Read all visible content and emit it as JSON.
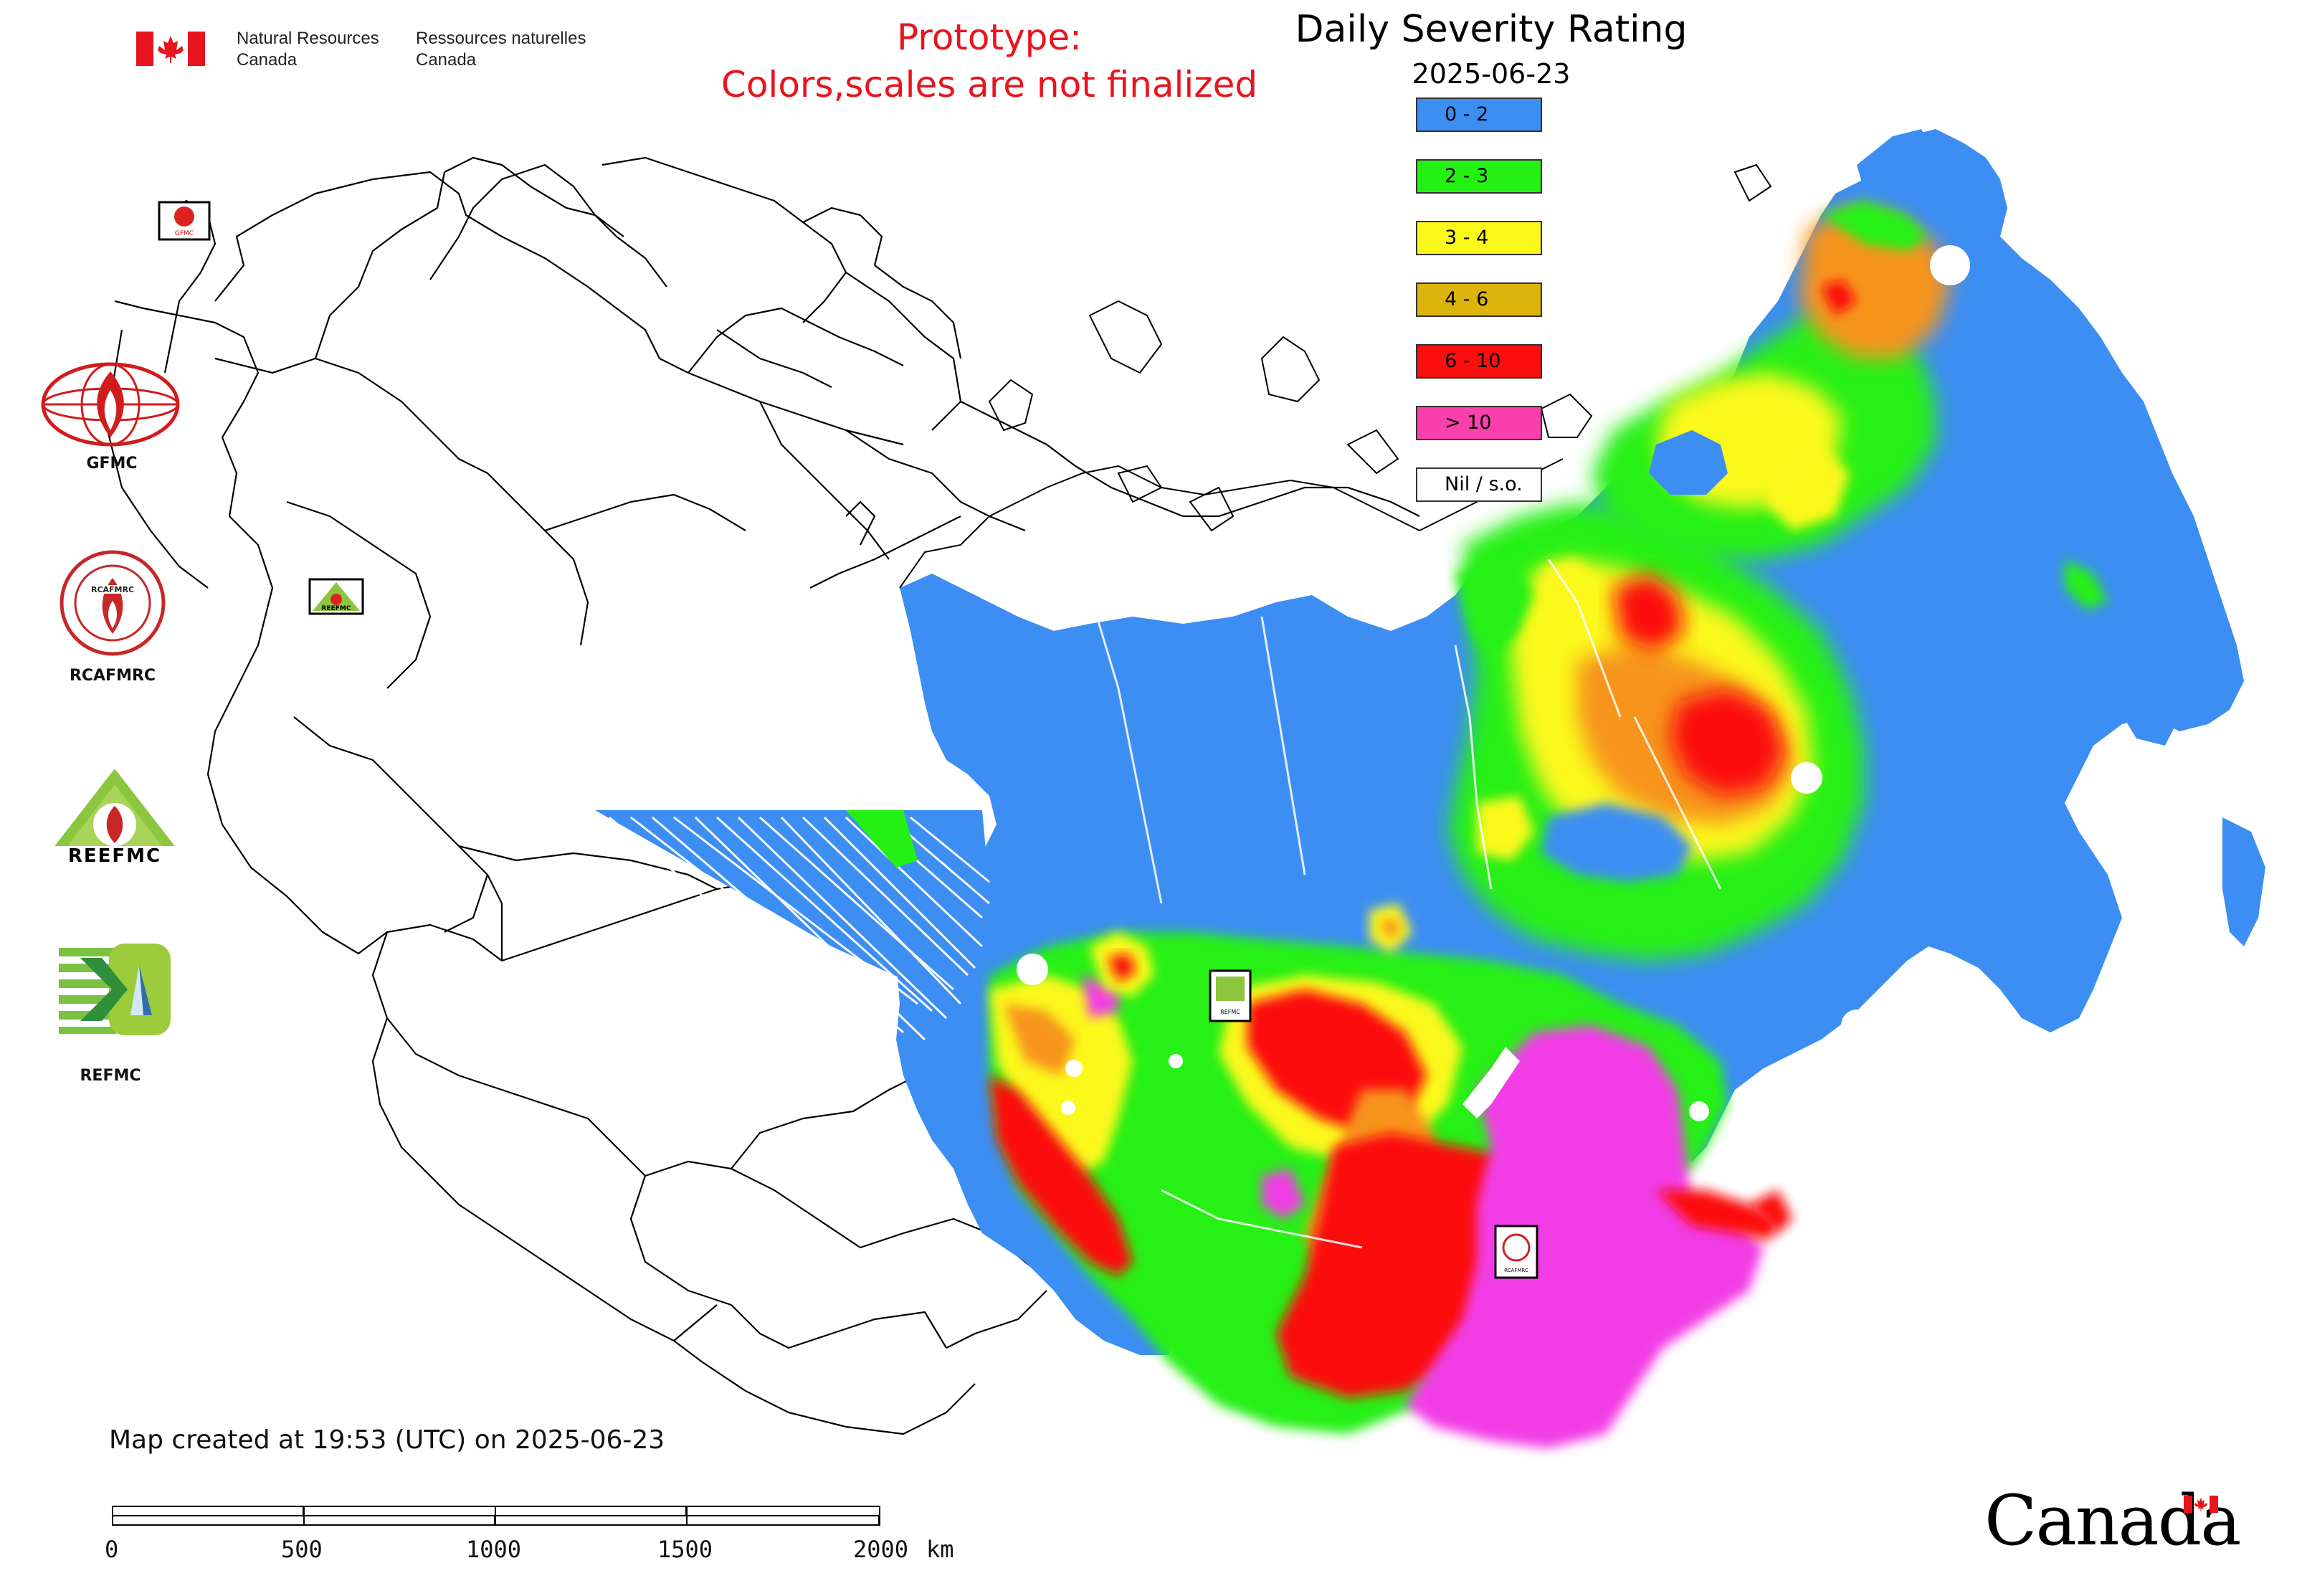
{
  "header": {
    "org_en_line1": "Natural Resources",
    "org_en_line2": "Canada",
    "org_fr_line1": "Ressources naturelles",
    "org_fr_line2": "Canada"
  },
  "prototype_notice": {
    "line1": "Prototype:",
    "line2": "Colors,scales are not finalized"
  },
  "legend": {
    "title": "Daily Severity Rating",
    "date": "2025-06-23",
    "classes": [
      {
        "label": "0 - 2",
        "color": "#3d8ef2"
      },
      {
        "label": "2 - 3",
        "color": "#25f014"
      },
      {
        "label": "3 - 4",
        "color": "#fbf81c"
      },
      {
        "label": "4 - 6",
        "color": "#dcb40c"
      },
      {
        "label": "6 - 10",
        "color": "#fb0e0e"
      },
      {
        "label": "> 10",
        "color": "#f940ad"
      },
      {
        "label": "Nil / s.o.",
        "color": "#ffffff"
      }
    ]
  },
  "side_logos": [
    {
      "label": "GFMC",
      "icon": "gfmc-logo"
    },
    {
      "label": "RCAFMRC",
      "icon": "rcafmrc-logo"
    },
    {
      "label": "",
      "icon": "reefmc-logo"
    },
    {
      "label": "REFMC",
      "icon": "refmc-logo"
    }
  ],
  "map_markers": [
    {
      "label": "GFMC",
      "icon": "gfmc-marker"
    },
    {
      "label": "REEFMC",
      "icon": "reefmc-marker"
    },
    {
      "label": "REFMC",
      "icon": "refmc-marker"
    },
    {
      "label": "RCAFMRC",
      "icon": "rcafmrc-marker"
    }
  ],
  "colors": {
    "blue": "#3d8ef2",
    "green": "#25f014",
    "yellow": "#fbf81c",
    "orange": "#f7941d",
    "gold": "#dcb40c",
    "red": "#fb0e0e",
    "magenta": "#f23ee6",
    "prototype_text": "#e8141e",
    "canada_flag_red": "#e8141e"
  },
  "footer": {
    "created_text": "Map created at 19:53 (UTC) on 2025-06-23",
    "wordmark": "Canada"
  },
  "scale_bar": {
    "ticks": [
      "0",
      "500",
      "1000",
      "1500",
      "2000"
    ],
    "unit": "km"
  }
}
